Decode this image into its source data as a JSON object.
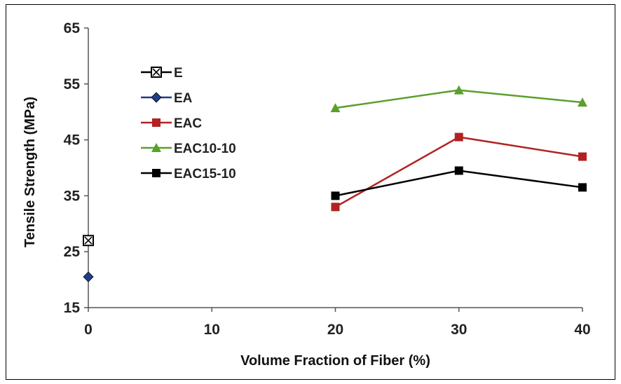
{
  "chart_data": {
    "type": "line",
    "xlabel": "Volume Fraction of Fiber (%)",
    "ylabel": "Tensile Strength  (MPa)",
    "xlim": [
      0,
      40
    ],
    "ylim": [
      15,
      65
    ],
    "x_ticks": [
      0,
      10,
      20,
      30,
      40
    ],
    "y_ticks": [
      15,
      25,
      35,
      45,
      55,
      65
    ],
    "grid": false,
    "legend_position": "top-left",
    "series": [
      {
        "name": "E",
        "color": "#000000",
        "marker": "boxed-x",
        "points": [
          [
            0,
            27
          ]
        ]
      },
      {
        "name": "EA",
        "color": "#1f3d8c",
        "marker": "diamond",
        "points": [
          [
            0,
            20.5
          ]
        ]
      },
      {
        "name": "EAC",
        "color": "#b22222",
        "marker": "square",
        "points": [
          [
            20,
            33
          ],
          [
            30,
            45.5
          ],
          [
            40,
            42
          ]
        ]
      },
      {
        "name": "EAC10-10",
        "color": "#5aa02c",
        "marker": "triangle",
        "points": [
          [
            20,
            50.7
          ],
          [
            30,
            53.9
          ],
          [
            40,
            51.7
          ]
        ]
      },
      {
        "name": "EAC15-10",
        "color": "#000000",
        "marker": "square",
        "points": [
          [
            20,
            35
          ],
          [
            30,
            39.5
          ],
          [
            40,
            36.5
          ]
        ]
      }
    ]
  }
}
